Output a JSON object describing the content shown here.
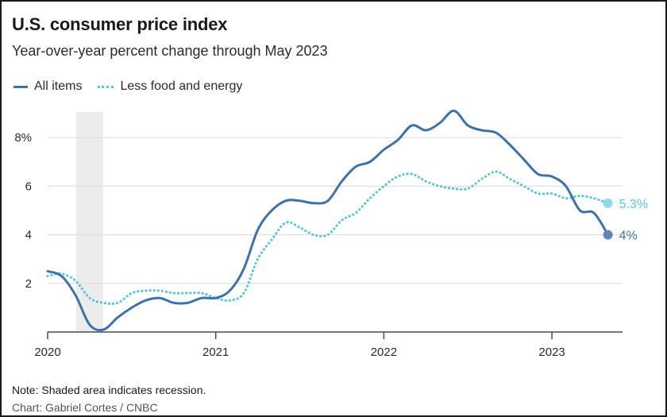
{
  "header": {
    "title": "U.S. consumer price index",
    "subtitle": "Year-over-year percent change through May 2023"
  },
  "footer": {
    "note": "Note: Shaded area indicates recession.",
    "credit": "Chart: Gabriel Cortes / CNBC"
  },
  "colors": {
    "all_items": "#3e72a8",
    "core": "#5cc6d9",
    "recession": "#ececec",
    "grid": "#dcdcdc",
    "axis": "#4a4a4a"
  },
  "chart_data": {
    "type": "line",
    "title": "U.S. consumer price index",
    "subtitle": "Year-over-year percent change through May 2023",
    "xlabel": "",
    "ylabel": "",
    "xlim": [
      2020.0,
      2023.42
    ],
    "ylim": [
      0,
      9
    ],
    "y_ticks": [
      2,
      4,
      6,
      8
    ],
    "y_tick_labels": [
      "2",
      "4",
      "6",
      "8%"
    ],
    "x_ticks": [
      2020,
      2021,
      2022,
      2023
    ],
    "x_tick_labels": [
      "2020",
      "2021",
      "2022",
      "2023"
    ],
    "grid": true,
    "legend_position": "top-left",
    "recession": {
      "start": 2020.17,
      "end": 2020.33
    },
    "series": [
      {
        "name": "All items",
        "style": "solid",
        "end_label": "4%",
        "x": [
          2020.0,
          2020.083,
          2020.167,
          2020.25,
          2020.333,
          2020.417,
          2020.5,
          2020.583,
          2020.667,
          2020.75,
          2020.833,
          2020.917,
          2021.0,
          2021.083,
          2021.167,
          2021.25,
          2021.333,
          2021.417,
          2021.5,
          2021.583,
          2021.667,
          2021.75,
          2021.833,
          2021.917,
          2022.0,
          2022.083,
          2022.167,
          2022.25,
          2022.333,
          2022.417,
          2022.5,
          2022.583,
          2022.667,
          2022.75,
          2022.833,
          2022.917,
          2023.0,
          2023.083,
          2023.167,
          2023.25,
          2023.333
        ],
        "values": [
          2.5,
          2.3,
          1.5,
          0.3,
          0.1,
          0.6,
          1.0,
          1.3,
          1.4,
          1.2,
          1.2,
          1.4,
          1.4,
          1.7,
          2.6,
          4.2,
          5.0,
          5.4,
          5.4,
          5.3,
          5.4,
          6.2,
          6.8,
          7.0,
          7.5,
          7.9,
          8.5,
          8.3,
          8.6,
          9.1,
          8.5,
          8.3,
          8.2,
          7.7,
          7.1,
          6.5,
          6.4,
          6.0,
          5.0,
          4.9,
          4.0
        ]
      },
      {
        "name": "Less food and energy",
        "style": "dotted",
        "end_label": "5.3%",
        "x": [
          2020.0,
          2020.083,
          2020.167,
          2020.25,
          2020.333,
          2020.417,
          2020.5,
          2020.583,
          2020.667,
          2020.75,
          2020.833,
          2020.917,
          2021.0,
          2021.083,
          2021.167,
          2021.25,
          2021.333,
          2021.417,
          2021.5,
          2021.583,
          2021.667,
          2021.75,
          2021.833,
          2021.917,
          2022.0,
          2022.083,
          2022.167,
          2022.25,
          2022.333,
          2022.417,
          2022.5,
          2022.583,
          2022.667,
          2022.75,
          2022.833,
          2022.917,
          2023.0,
          2023.083,
          2023.167,
          2023.25,
          2023.333
        ],
        "values": [
          2.3,
          2.4,
          2.1,
          1.4,
          1.2,
          1.2,
          1.6,
          1.7,
          1.7,
          1.6,
          1.6,
          1.6,
          1.4,
          1.3,
          1.6,
          3.0,
          3.8,
          4.5,
          4.3,
          4.0,
          4.0,
          4.6,
          4.9,
          5.5,
          6.0,
          6.4,
          6.5,
          6.2,
          6.0,
          5.9,
          5.9,
          6.3,
          6.6,
          6.3,
          6.0,
          5.7,
          5.7,
          5.5,
          5.6,
          5.5,
          5.3
        ]
      }
    ]
  }
}
